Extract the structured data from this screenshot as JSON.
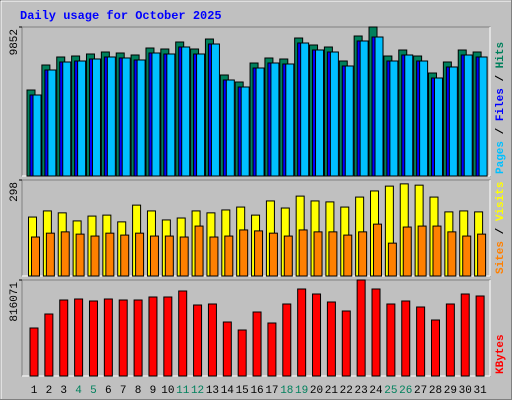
{
  "chart_data": [
    {
      "type": "bar",
      "title": "Daily usage for October 2025",
      "ylim": [
        0,
        9852
      ],
      "yticks": [
        9852
      ],
      "legend_separator": " / ",
      "series": [
        {
          "name": "Hits",
          "color": "#00805c",
          "values": [
            5686,
            7339,
            7868,
            7934,
            8067,
            8199,
            8133,
            8001,
            8463,
            8397,
            8860,
            8397,
            9058,
            6678,
            6215,
            7471,
            7802,
            7736,
            9124,
            8662,
            8529,
            7604,
            9257,
            9852,
            7934,
            8331,
            7934,
            6810,
            7538,
            8331,
            8199
          ]
        },
        {
          "name": "Files",
          "color": "#0000ff",
          "values": [
            5356,
            7009,
            7538,
            7604,
            7737,
            7869,
            7803,
            7671,
            8133,
            8067,
            8530,
            8067,
            8728,
            6348,
            5885,
            7141,
            7472,
            7406,
            8794,
            8332,
            8199,
            7274,
            8927,
            9190,
            7604,
            8001,
            7604,
            6480,
            7208,
            8001,
            7869
          ]
        },
        {
          "name": "Pages",
          "color": "#00c0ff",
          "values": [
            5356,
            7009,
            7538,
            7604,
            7737,
            7869,
            7803,
            7671,
            8133,
            8067,
            8530,
            8067,
            8728,
            6348,
            5885,
            7141,
            7472,
            7406,
            8794,
            8332,
            8199,
            7274,
            8927,
            9190,
            7604,
            8001,
            7604,
            6480,
            7208,
            8001,
            7869
          ]
        }
      ]
    },
    {
      "type": "bar",
      "ylim": [
        0,
        298
      ],
      "yticks": [
        298
      ],
      "legend_separator": " / ",
      "series": [
        {
          "name": "Visits",
          "color": "#ffff00",
          "values": [
            183,
            202,
            196,
            171,
            186,
            189,
            168,
            220,
            202,
            174,
            180,
            202,
            196,
            205,
            214,
            189,
            233,
            211,
            248,
            233,
            230,
            214,
            245,
            264,
            279,
            286,
            282,
            245,
            199,
            202,
            199
          ]
        },
        {
          "name": "Sites",
          "color": "#ff8000",
          "values": [
            121,
            133,
            137,
            130,
            124,
            133,
            127,
            133,
            124,
            124,
            121,
            155,
            121,
            124,
            143,
            140,
            133,
            124,
            143,
            137,
            137,
            127,
            137,
            161,
            102,
            152,
            155,
            155,
            137,
            124,
            130
          ]
        }
      ]
    },
    {
      "type": "bar",
      "ylim": [
        0,
        816071
      ],
      "yticks": [
        816071
      ],
      "legend_separator": " / ",
      "categories": [
        "1",
        "2",
        "3",
        "4",
        "5",
        "6",
        "7",
        "8",
        "9",
        "10",
        "11",
        "12",
        "13",
        "14",
        "15",
        "16",
        "17",
        "18",
        "19",
        "20",
        "21",
        "22",
        "23",
        "24",
        "25",
        "26",
        "27",
        "28",
        "29",
        "30",
        "31"
      ],
      "category_colors": [
        "#000000",
        "#000000",
        "#000000",
        "#00805c",
        "#00805c",
        "#000000",
        "#000000",
        "#000000",
        "#000000",
        "#000000",
        "#00805c",
        "#00805c",
        "#000000",
        "#000000",
        "#000000",
        "#000000",
        "#000000",
        "#00805c",
        "#00805c",
        "#000000",
        "#000000",
        "#000000",
        "#000000",
        "#000000",
        "#00805c",
        "#00805c",
        "#000000",
        "#000000",
        "#000000",
        "#000000",
        "#000000"
      ],
      "series": [
        {
          "name": "KBytes",
          "color": "#ff0000",
          "values": [
            408048,
            527062,
            646076,
            654577,
            637575,
            654577,
            646076,
            646076,
            671579,
            671579,
            722585,
            603571,
            612072,
            459054,
            391046,
            544064,
            450553,
            612072,
            739587,
            697082,
            629074,
            552565,
            816071,
            739587,
            612072,
            637575,
            586569,
            476056,
            612072,
            697082,
            680080
          ]
        }
      ]
    }
  ]
}
